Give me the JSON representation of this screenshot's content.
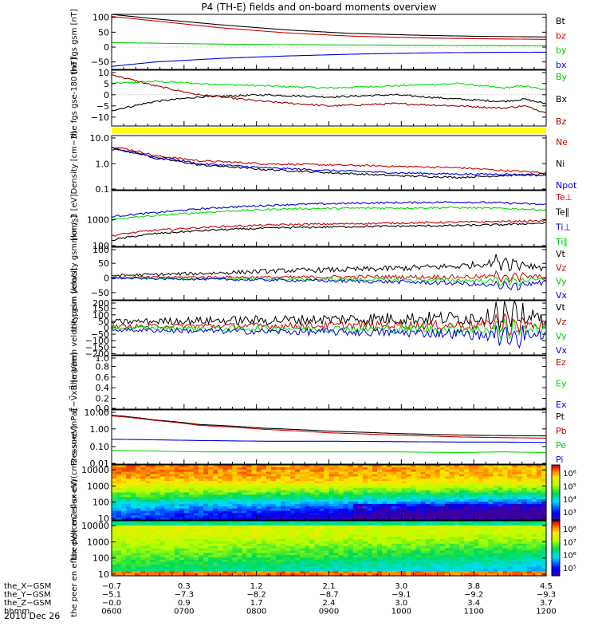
{
  "title": "P4 (TH-E) fields and on-board moments overview",
  "date_label": "2010 Dec 26",
  "colors": {
    "black": "#000000",
    "red": "#cc0000",
    "dark_red": "#990000",
    "green": "#00dd00",
    "blue": "#0000dd",
    "yellow": "#ffff00"
  },
  "chart_data": [
    {
      "type": "line",
      "ylabel": "the fgs gsm [nT]",
      "yticks": [
        "100",
        "50",
        "0",
        "−50"
      ],
      "ylim": [
        -75,
        110
      ],
      "legend": [
        "Bt",
        "bz",
        "by",
        "bx"
      ],
      "series": [
        {
          "name": "Bt",
          "color": "#000000",
          "x": [
            0,
            0.1,
            0.25,
            0.4,
            0.55,
            0.7,
            0.85,
            1.0
          ],
          "values": [
            110,
            95,
            75,
            58,
            46,
            40,
            36,
            34
          ]
        },
        {
          "name": "bz",
          "color": "#cc0000",
          "x": [
            0,
            0.1,
            0.25,
            0.4,
            0.55,
            0.7,
            0.85,
            1.0
          ],
          "values": [
            103,
            88,
            65,
            48,
            37,
            31,
            28,
            26
          ]
        },
        {
          "name": "by",
          "color": "#00cc00",
          "x": [
            0,
            0.1,
            0.25,
            0.4,
            0.55,
            0.7,
            0.85,
            1.0
          ],
          "values": [
            15,
            13,
            10,
            8,
            7,
            6,
            5,
            4
          ]
        },
        {
          "name": "bx",
          "color": "#0000dd",
          "x": [
            0,
            0.1,
            0.25,
            0.4,
            0.55,
            0.7,
            0.85,
            1.0
          ],
          "values": [
            -65,
            -50,
            -38,
            -30,
            -24,
            -20,
            -18,
            -17
          ]
        }
      ]
    },
    {
      "type": "line",
      "ylabel": "the fgs gse-180 [nT]",
      "yticks": [
        "10",
        "5",
        "0",
        "−5",
        "−10"
      ],
      "ylim": [
        -14,
        11
      ],
      "legend": [
        "By",
        "Bx",
        "Bz"
      ],
      "series": [
        {
          "name": "By",
          "color": "#00dd00",
          "x": [
            0,
            0.1,
            0.2,
            0.35,
            0.5,
            0.65,
            0.8,
            0.9,
            0.95,
            1.0
          ],
          "values": [
            5,
            6,
            5,
            4,
            3,
            4,
            5,
            3,
            4,
            2
          ]
        },
        {
          "name": "Bx",
          "color": "#000000",
          "x": [
            0,
            0.1,
            0.2,
            0.35,
            0.5,
            0.65,
            0.8,
            0.9,
            0.95,
            1.0
          ],
          "values": [
            -7,
            -3,
            -1,
            0,
            -1,
            0,
            -2,
            -3,
            -2,
            -4
          ]
        },
        {
          "name": "Bz",
          "color": "#990000",
          "x": [
            0,
            0.1,
            0.2,
            0.35,
            0.5,
            0.65,
            0.8,
            0.9,
            0.95,
            1.0
          ],
          "values": [
            9,
            4,
            0,
            -3,
            -5,
            -4,
            -5,
            -6,
            -5,
            -8
          ]
        }
      ]
    },
    {
      "type": "line",
      "ylabel": "Density [cm−3]",
      "yticks": [
        "10.0",
        "1.0",
        "0.1"
      ],
      "yscale": "log",
      "ylim": [
        0.1,
        12
      ],
      "legend": [
        "Ne",
        "Ni",
        "Npot"
      ],
      "series": [
        {
          "name": "Ne",
          "color": "#cc0000",
          "x": [
            0,
            0.1,
            0.2,
            0.35,
            0.5,
            0.65,
            0.8,
            0.9,
            1.0
          ],
          "values": [
            4.5,
            2.0,
            1.3,
            1.0,
            0.9,
            0.8,
            0.7,
            0.55,
            0.45
          ]
        },
        {
          "name": "Ni",
          "color": "#000000",
          "x": [
            0,
            0.1,
            0.2,
            0.35,
            0.5,
            0.65,
            0.8,
            0.9,
            1.0
          ],
          "values": [
            4.0,
            1.6,
            0.9,
            0.6,
            0.45,
            0.35,
            0.3,
            0.35,
            0.4
          ]
        },
        {
          "name": "Npot",
          "color": "#0000dd",
          "x": [
            0,
            0.1,
            0.2,
            0.35,
            0.5,
            0.65,
            0.8,
            0.9,
            1.0
          ],
          "values": [
            3.5,
            1.8,
            1.0,
            0.7,
            0.55,
            0.45,
            0.4,
            0.4,
            0.35
          ]
        }
      ]
    },
    {
      "type": "line",
      "ylabel": "mom_3 [eV]",
      "yticks": [
        "1000",
        "100"
      ],
      "yscale": "log",
      "ylim": [
        100,
        12000
      ],
      "legend": [
        "Te⊥",
        "Te∥",
        "Ti⊥",
        "Ti∥"
      ],
      "series": [
        {
          "name": "Ti⊥",
          "color": "#0000dd",
          "x": [
            0,
            0.1,
            0.25,
            0.4,
            0.6,
            0.8,
            0.9,
            1.0
          ],
          "values": [
            1300,
            1800,
            2800,
            3600,
            4200,
            4500,
            4200,
            3600
          ]
        },
        {
          "name": "Ti∥",
          "color": "#00dd00",
          "x": [
            0,
            0.1,
            0.25,
            0.4,
            0.6,
            0.8,
            0.9,
            1.0
          ],
          "values": [
            1000,
            1400,
            2000,
            2500,
            2700,
            2800,
            2600,
            2300
          ]
        },
        {
          "name": "Te⊥",
          "color": "#cc0000",
          "x": [
            0,
            0.1,
            0.25,
            0.4,
            0.6,
            0.8,
            0.9,
            1.0
          ],
          "values": [
            250,
            400,
            550,
            650,
            720,
            800,
            850,
            900
          ]
        },
        {
          "name": "Te∥",
          "color": "#000000",
          "x": [
            0,
            0.1,
            0.25,
            0.4,
            0.6,
            0.8,
            0.9,
            1.0
          ],
          "values": [
            170,
            300,
            420,
            500,
            560,
            600,
            650,
            750
          ]
        }
      ]
    },
    {
      "type": "line",
      "ylabel": "the peim velocity gsm [km/s]",
      "yticks": [
        "100",
        "50",
        "0",
        "−50"
      ],
      "ylim": [
        -75,
        105
      ],
      "legend": [
        "Vt",
        "Vz",
        "Vy",
        "Vx"
      ],
      "series": [
        {
          "name": "Vt",
          "color": "#000000",
          "x": [
            0,
            0.2,
            0.4,
            0.6,
            0.8,
            0.9,
            1.0
          ],
          "values": [
            8,
            15,
            25,
            30,
            40,
            55,
            35
          ]
        },
        {
          "name": "Vz",
          "color": "#cc0000",
          "x": [
            0,
            0.2,
            0.4,
            0.6,
            0.8,
            0.9,
            1.0
          ],
          "values": [
            2,
            3,
            2,
            4,
            3,
            5,
            3
          ]
        },
        {
          "name": "Vy",
          "color": "#00dd00",
          "x": [
            0,
            0.2,
            0.4,
            0.6,
            0.8,
            0.9,
            1.0
          ],
          "values": [
            1,
            -2,
            -4,
            -6,
            -8,
            -12,
            -6
          ]
        },
        {
          "name": "Vx",
          "color": "#0000dd",
          "x": [
            0,
            0.2,
            0.4,
            0.6,
            0.8,
            0.9,
            1.0
          ],
          "values": [
            -1,
            -4,
            -8,
            -12,
            -18,
            -30,
            -15
          ]
        }
      ]
    },
    {
      "type": "line",
      "ylabel": "the peem velocity gsm [km/s]",
      "yticks": [
        "200",
        "150",
        "100",
        "50",
        "0",
        "−50",
        "−100",
        "−150",
        "−200"
      ],
      "ylim": [
        -210,
        210
      ],
      "legend": [
        "Vt",
        "Vz",
        "Vy",
        "Vx"
      ],
      "series": [
        {
          "name": "Vt",
          "color": "#000000",
          "x": [
            0,
            0.2,
            0.4,
            0.6,
            0.8,
            0.9,
            1.0
          ],
          "values": [
            45,
            55,
            60,
            70,
            75,
            95,
            70
          ]
        },
        {
          "name": "Vz",
          "color": "#cc0000",
          "x": [
            0,
            0.2,
            0.4,
            0.6,
            0.8,
            0.9,
            1.0
          ],
          "values": [
            10,
            15,
            15,
            20,
            20,
            25,
            20
          ]
        },
        {
          "name": "Vy",
          "color": "#00dd00",
          "x": [
            0,
            0.2,
            0.4,
            0.6,
            0.8,
            0.9,
            1.0
          ],
          "values": [
            0,
            -5,
            -5,
            -10,
            -10,
            -15,
            -10
          ]
        },
        {
          "name": "Vx",
          "color": "#0000dd",
          "x": [
            0,
            0.2,
            0.4,
            0.6,
            0.8,
            0.9,
            1.0
          ],
          "values": [
            -15,
            -25,
            -30,
            -35,
            -45,
            -70,
            -50
          ]
        }
      ]
    },
    {
      "type": "line",
      "ylabel": "E⃗−V⃗xB⃗ [mV/m]",
      "yticks": [
        "1.0",
        "0.8",
        "0.6",
        "0.4",
        "0.2",
        "0.0"
      ],
      "ylim": [
        0,
        1
      ],
      "legend": [
        "Ez",
        "Ey",
        "Ex"
      ],
      "series": []
    },
    {
      "type": "line",
      "ylabel": "Pressure [nPa]",
      "yticks": [
        "10.00",
        "1.00",
        "0.10",
        "0.01"
      ],
      "yscale": "log",
      "ylim": [
        0.01,
        12
      ],
      "legend": [
        "Pt",
        "Pb",
        "Pe",
        "Pi"
      ],
      "series": [
        {
          "name": "Pt",
          "color": "#000000",
          "x": [
            0,
            0.1,
            0.2,
            0.35,
            0.5,
            0.65,
            0.8,
            0.9,
            1.0
          ],
          "values": [
            6.0,
            3.2,
            1.8,
            1.1,
            0.75,
            0.55,
            0.45,
            0.42,
            0.4
          ]
        },
        {
          "name": "Pb",
          "color": "#cc0000",
          "x": [
            0,
            0.1,
            0.2,
            0.35,
            0.5,
            0.65,
            0.8,
            0.9,
            1.0
          ],
          "values": [
            5.5,
            3.0,
            1.6,
            0.95,
            0.6,
            0.45,
            0.35,
            0.32,
            0.3
          ]
        },
        {
          "name": "Pe",
          "color": "#00dd00",
          "x": [
            0,
            0.1,
            0.2,
            0.35,
            0.5,
            0.65,
            0.8,
            0.9,
            1.0
          ],
          "values": [
            0.06,
            0.055,
            0.05,
            0.05,
            0.05,
            0.05,
            0.045,
            0.05,
            0.045
          ]
        },
        {
          "name": "Pi",
          "color": "#0000dd",
          "x": [
            0,
            0.1,
            0.2,
            0.35,
            0.5,
            0.65,
            0.8,
            0.9,
            1.0
          ],
          "values": [
            0.26,
            0.24,
            0.22,
            0.2,
            0.2,
            0.19,
            0.18,
            0.18,
            0.17
          ]
        }
      ]
    },
    {
      "type": "heatmap",
      "ylabel": "the peir en eflux eV/(cm2-s-sr-eV)",
      "yticks": [
        "10000",
        "1000",
        "100",
        "10"
      ],
      "yscale": "log",
      "ylim": [
        8,
        20000
      ],
      "colorbar_ticks": [
        "10⁶",
        "10⁵",
        "10⁴",
        "10³"
      ],
      "colorbar_range": [
        500,
        2000000
      ]
    },
    {
      "type": "heatmap",
      "ylabel": "the peer en eflux eV/(cm2-s-sr-eV)",
      "yticks": [
        "10000",
        "1000",
        "100",
        "10"
      ],
      "yscale": "log",
      "ylim": [
        8,
        20000
      ],
      "colorbar_ticks": [
        "10⁸",
        "10⁷",
        "10⁶",
        "10⁵"
      ],
      "colorbar_range": [
        50000,
        150000000
      ]
    }
  ],
  "xaxis": {
    "rows": [
      {
        "label": "the_X−GSM",
        "values": [
          "−0.7",
          "0.3",
          "1.2",
          "2.1",
          "3.0",
          "3.8",
          "4.5"
        ]
      },
      {
        "label": "the_Y−GSM",
        "values": [
          "−5.1",
          "−7.3",
          "−8.2",
          "−8.7",
          "−9.1",
          "−9.2",
          "−9.3"
        ]
      },
      {
        "label": "the_Z−GSM",
        "values": [
          "−0.0",
          "0.9",
          "1.7",
          "2.4",
          "3.0",
          "3.4",
          "3.7"
        ]
      },
      {
        "label": "hhmm",
        "values": [
          "0600",
          "0700",
          "0800",
          "0900",
          "1000",
          "1100",
          "1200"
        ]
      }
    ]
  }
}
